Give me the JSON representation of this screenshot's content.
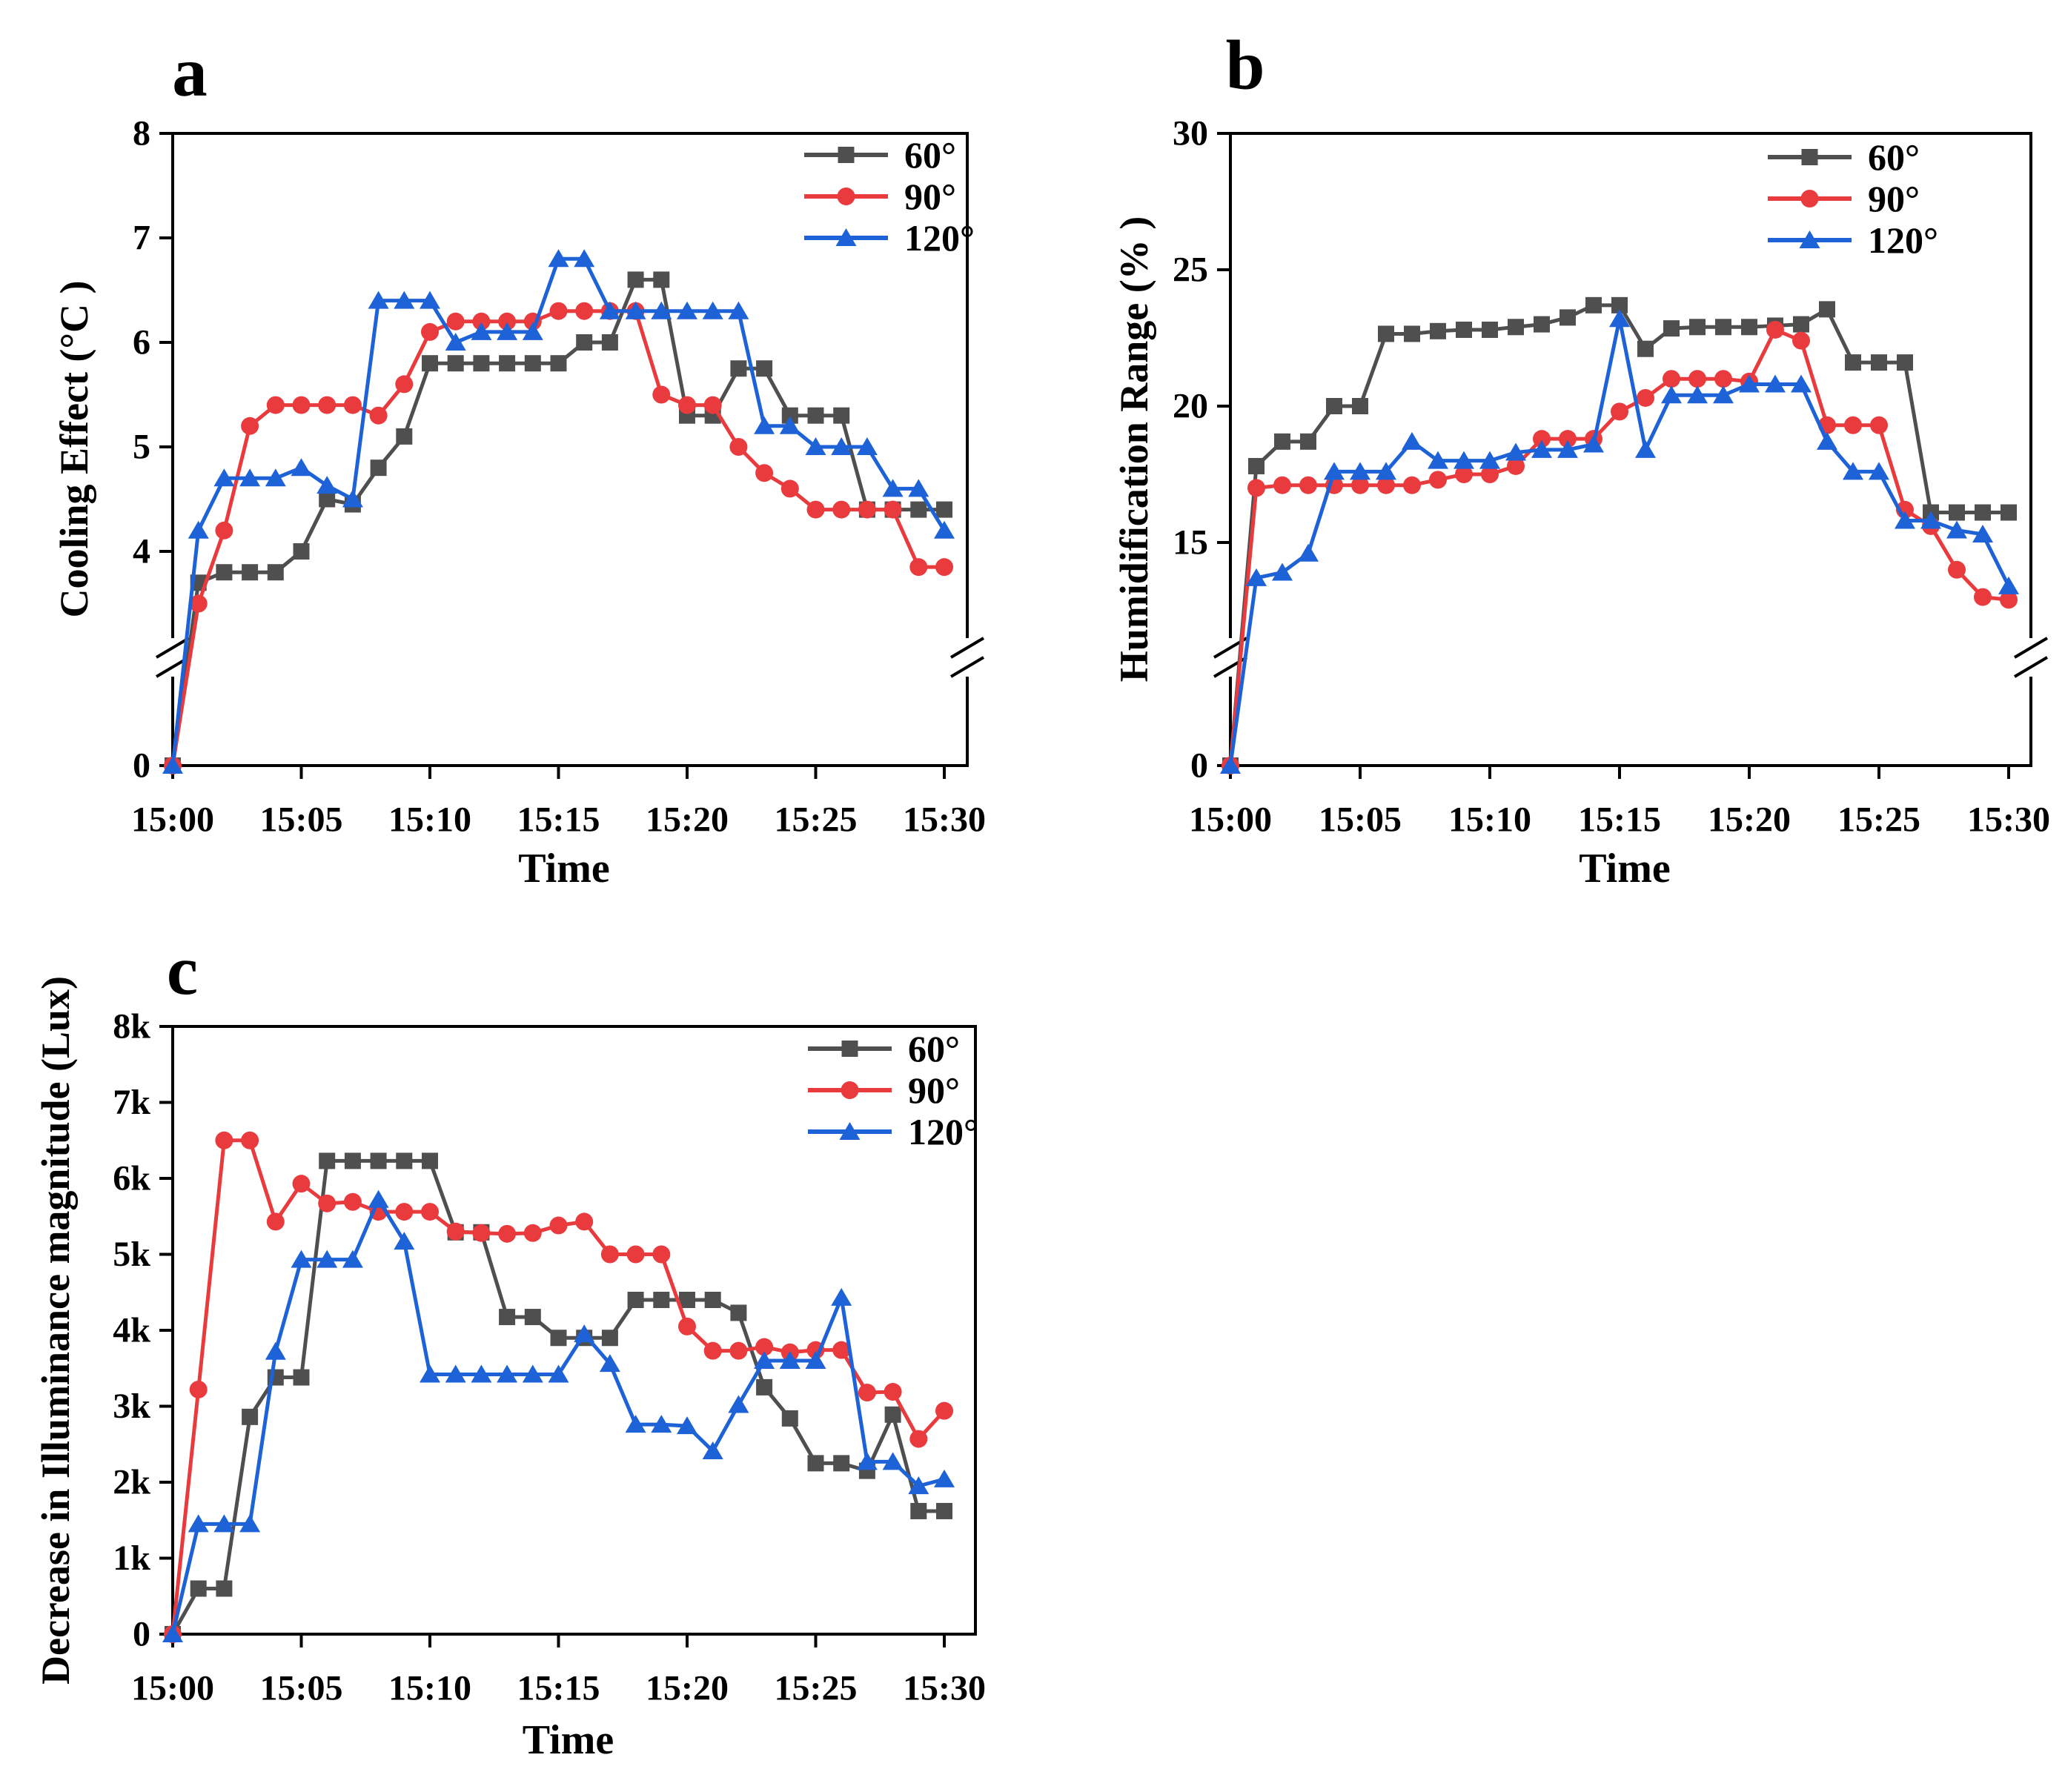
{
  "figure": {
    "background": "#ffffff",
    "axis_color": "#000000",
    "series_colors": {
      "60": "#4f4f4f",
      "90": "#e93b3d",
      "120": "#1e62d8"
    },
    "legend_labels": [
      "60°",
      "90°",
      "120°"
    ],
    "time_label": "Time"
  },
  "chart_data": [
    {
      "id": "a",
      "type": "line",
      "panel_label": "a",
      "xlabel": "Time",
      "ylabel": "Cooling Effect (°C )",
      "x_tick_labels": [
        "15:00",
        "15:05",
        "15:10",
        "15:15",
        "15:20",
        "15:25",
        "15:30"
      ],
      "x_minutes": [
        0,
        30
      ],
      "axis_break": true,
      "ylim": [
        0,
        8
      ],
      "y_ticks": [
        {
          "label": "8",
          "value": 8
        },
        {
          "label": "7",
          "value": 7
        },
        {
          "label": "6",
          "value": 6
        },
        {
          "label": "5",
          "value": 5
        },
        {
          "label": "4",
          "value": 4
        },
        {
          "label": "0",
          "value": 0
        }
      ],
      "legend": {
        "position": "top-right",
        "entries": [
          "60°",
          "90°",
          "120°"
        ]
      },
      "series": [
        {
          "name": "60°",
          "color": "#4f4f4f",
          "marker": "square",
          "values": [
            0,
            3.7,
            3.8,
            3.8,
            3.8,
            4.0,
            4.5,
            4.45,
            4.8,
            5.1,
            5.8,
            5.8,
            5.8,
            5.8,
            5.8,
            5.8,
            6.0,
            6.0,
            6.6,
            6.6,
            5.3,
            5.3,
            5.75,
            5.75,
            5.3,
            5.3,
            5.3,
            4.4,
            4.4,
            4.4,
            4.4
          ]
        },
        {
          "name": "90°",
          "color": "#e93b3d",
          "marker": "circle",
          "values": [
            0,
            3.5,
            4.2,
            5.2,
            5.4,
            5.4,
            5.4,
            5.4,
            5.3,
            5.6,
            6.1,
            6.2,
            6.2,
            6.2,
            6.2,
            6.3,
            6.3,
            6.3,
            6.3,
            5.5,
            5.4,
            5.4,
            5.0,
            4.75,
            4.6,
            4.4,
            4.4,
            4.4,
            4.4,
            3.85,
            3.85
          ]
        },
        {
          "name": "120°",
          "color": "#1e62d8",
          "marker": "triangle",
          "values": [
            0,
            4.2,
            4.7,
            4.7,
            4.7,
            4.8,
            4.63,
            4.5,
            6.4,
            6.4,
            6.4,
            6.0,
            6.1,
            6.1,
            6.1,
            6.8,
            6.8,
            6.3,
            6.3,
            6.3,
            6.3,
            6.3,
            6.3,
            5.2,
            5.2,
            5.0,
            5.0,
            5.0,
            4.6,
            4.6,
            4.2
          ]
        }
      ]
    },
    {
      "id": "b",
      "type": "line",
      "panel_label": "b",
      "xlabel": "Time",
      "ylabel": "Humidification Range (% )",
      "x_tick_labels": [
        "15:00",
        "15:05",
        "15:10",
        "15:15",
        "15:20",
        "15:25",
        "15:30"
      ],
      "x_minutes": [
        0,
        30
      ],
      "axis_break": true,
      "ylim": [
        0,
        30
      ],
      "y_ticks": [
        {
          "label": "30",
          "value": 30
        },
        {
          "label": "25",
          "value": 25
        },
        {
          "label": "20",
          "value": 20
        },
        {
          "label": "15",
          "value": 15
        },
        {
          "label": "0",
          "value": 0
        }
      ],
      "legend": {
        "position": "top-right",
        "entries": [
          "60°",
          "90°",
          "120°"
        ]
      },
      "series": [
        {
          "name": "60°",
          "color": "#4f4f4f",
          "marker": "square",
          "values": [
            0,
            17.8,
            18.7,
            18.7,
            20.0,
            20.0,
            22.65,
            22.65,
            22.75,
            22.8,
            22.8,
            22.9,
            23.0,
            23.25,
            23.7,
            23.7,
            22.1,
            22.85,
            22.9,
            22.9,
            22.9,
            22.95,
            23.0,
            23.55,
            21.6,
            21.6,
            21.6,
            16.1,
            16.1,
            16.1,
            16.1
          ]
        },
        {
          "name": "90°",
          "color": "#e93b3d",
          "marker": "circle",
          "values": [
            0,
            17.0,
            17.1,
            17.1,
            17.1,
            17.1,
            17.1,
            17.1,
            17.3,
            17.5,
            17.5,
            17.8,
            18.8,
            18.8,
            18.8,
            19.8,
            20.3,
            21.0,
            21.0,
            21.0,
            20.9,
            22.8,
            22.4,
            19.3,
            19.3,
            19.3,
            16.2,
            15.6,
            14.0,
            13.0,
            12.9
          ]
        },
        {
          "name": "120°",
          "color": "#1e62d8",
          "marker": "triangle",
          "values": [
            0,
            13.7,
            13.9,
            14.6,
            17.6,
            17.6,
            17.6,
            18.7,
            18.0,
            18.0,
            18.0,
            18.3,
            18.4,
            18.4,
            18.6,
            23.2,
            18.4,
            20.4,
            20.4,
            20.4,
            20.8,
            20.8,
            20.8,
            18.7,
            17.6,
            17.6,
            15.8,
            15.8,
            15.45,
            15.3,
            13.4
          ]
        }
      ]
    },
    {
      "id": "c",
      "type": "line",
      "panel_label": "c",
      "xlabel": "Time",
      "ylabel": "Decrease in Illuminance magnitude (Lux)",
      "x_tick_labels": [
        "15:00",
        "15:05",
        "15:10",
        "15:15",
        "15:20",
        "15:25",
        "15:30"
      ],
      "x_minutes": [
        0,
        30
      ],
      "axis_break": false,
      "ylim": [
        0,
        8000
      ],
      "y_ticks": [
        {
          "label": "8k",
          "value": 8000
        },
        {
          "label": "7k",
          "value": 7000
        },
        {
          "label": "6k",
          "value": 6000
        },
        {
          "label": "5k",
          "value": 5000
        },
        {
          "label": "4k",
          "value": 4000
        },
        {
          "label": "3k",
          "value": 3000
        },
        {
          "label": "2k",
          "value": 2000
        },
        {
          "label": "1k",
          "value": 1000
        },
        {
          "label": "0",
          "value": 0
        }
      ],
      "legend": {
        "position": "top-right",
        "entries": [
          "60°",
          "90°",
          "120°"
        ]
      },
      "series": [
        {
          "name": "60°",
          "color": "#4f4f4f",
          "marker": "square",
          "values": [
            0,
            600,
            600,
            2860,
            3380,
            3380,
            6230,
            6230,
            6230,
            6230,
            6230,
            5290,
            5290,
            4175,
            4175,
            3900,
            3900,
            3900,
            4400,
            4400,
            4400,
            4400,
            4230,
            3250,
            2840,
            2250,
            2250,
            2150,
            2890,
            1620,
            1620
          ]
        },
        {
          "name": "90°",
          "color": "#e93b3d",
          "marker": "circle",
          "values": [
            0,
            3220,
            6500,
            6500,
            5430,
            5930,
            5670,
            5690,
            5560,
            5560,
            5560,
            5300,
            5280,
            5270,
            5280,
            5380,
            5430,
            5000,
            5000,
            5000,
            4050,
            3730,
            3730,
            3780,
            3710,
            3740,
            3740,
            3180,
            3190,
            2570,
            2940
          ]
        },
        {
          "name": "120°",
          "color": "#1e62d8",
          "marker": "triangle",
          "values": [
            0,
            1450,
            1450,
            1450,
            3720,
            4930,
            4930,
            4930,
            5720,
            5170,
            3420,
            3420,
            3420,
            3420,
            3420,
            3420,
            3950,
            3560,
            2760,
            2760,
            2740,
            2410,
            3020,
            3600,
            3600,
            3600,
            4430,
            2270,
            2270,
            1950,
            2040
          ]
        }
      ]
    }
  ]
}
